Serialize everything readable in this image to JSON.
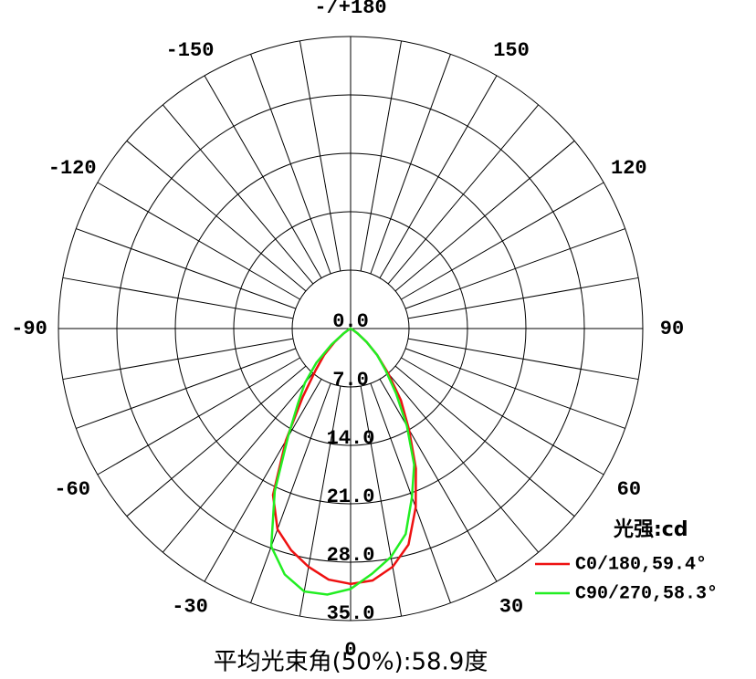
{
  "chart_data": {
    "type": "polar",
    "caption": "平均光束角(50%):58.9度",
    "legend_title": "光强:cd",
    "rlim": [
      0,
      35
    ],
    "rticks": [
      {
        "value": 0,
        "label": "0.0"
      },
      {
        "value": 7,
        "label": "7.0"
      },
      {
        "value": 14,
        "label": "14.0"
      },
      {
        "value": 21,
        "label": "21.0"
      },
      {
        "value": 28,
        "label": "28.0"
      },
      {
        "value": 35,
        "label": "35.0"
      }
    ],
    "thetaticks": [
      0,
      30,
      60,
      90,
      120,
      150,
      {
        "value": 180,
        "label": "-/+180"
      },
      -150,
      -120,
      -90,
      -60,
      -30
    ],
    "x": [
      -90,
      -85,
      -80,
      -75,
      -70,
      -65,
      -60,
      -55,
      -50,
      -45,
      -40,
      -35,
      -30,
      -25,
      -20,
      -15,
      -10,
      -5,
      0,
      5,
      10,
      15,
      20,
      25,
      30,
      35,
      40,
      45,
      50,
      55,
      60,
      65,
      70,
      75,
      80,
      85,
      90
    ],
    "series": [
      {
        "name": "C0/180,59.4°",
        "color": "#ee1111",
        "values": [
          0,
          0,
          0,
          0,
          0,
          0,
          0.3,
          1,
          2.5,
          4.5,
          6.5,
          10,
          15.5,
          22,
          25.6,
          27.5,
          29,
          30.2,
          30.6,
          30.3,
          29,
          26.8,
          22.8,
          18.5,
          14,
          10.5,
          7,
          4.5,
          2.5,
          1,
          0.3,
          0,
          0,
          0,
          0,
          0,
          0
        ]
      },
      {
        "name": "C90/270,58.3°",
        "color": "#22ee22",
        "values": [
          0,
          0,
          0,
          0,
          0,
          0,
          0.3,
          1,
          3,
          5.8,
          8.5,
          11,
          15,
          21.5,
          27.8,
          30.5,
          32,
          32,
          31.2,
          29.5,
          27.8,
          25.5,
          21.5,
          18,
          13.5,
          9.5,
          6.5,
          4.5,
          2.5,
          1,
          0.3,
          0,
          0,
          0,
          0,
          0,
          0
        ]
      }
    ]
  }
}
